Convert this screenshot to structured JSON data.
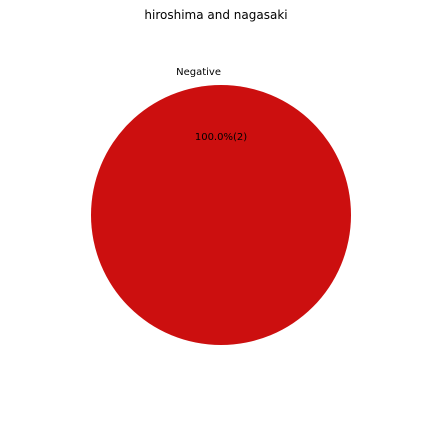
{
  "chart_data": {
    "type": "pie",
    "title": "hiroshima and nagasaki",
    "slices": [
      {
        "label": "Negative",
        "value": 2,
        "percent_label": "100.0%(2)",
        "color": "#cc0f0f"
      }
    ],
    "legend": "none"
  }
}
